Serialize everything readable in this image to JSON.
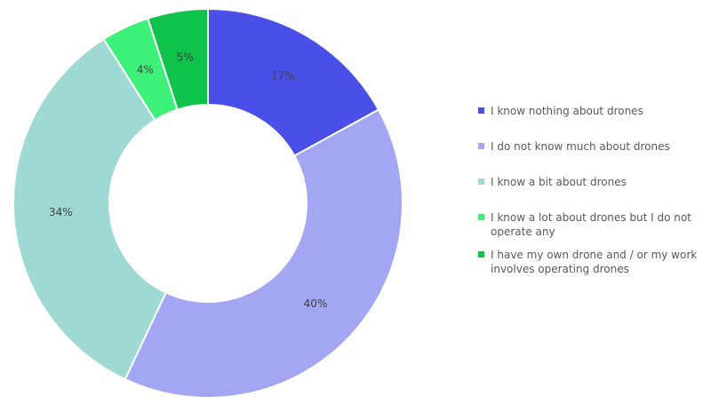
{
  "chart_data": {
    "type": "pie",
    "donut": true,
    "legend_position": "right",
    "slices": [
      {
        "label": "I know nothing about drones",
        "value": 17,
        "value_label": "17%",
        "color": "#4a4fe8"
      },
      {
        "label": "I do not know much about drones",
        "value": 40,
        "value_label": "40%",
        "color": "#a3a6f2"
      },
      {
        "label": "I know a bit about drones",
        "value": 34,
        "value_label": "34%",
        "color": "#9ed9d4"
      },
      {
        "label": "I know a lot about drones but I do not operate any",
        "value": 4,
        "value_label": "4%",
        "color": "#3cf07a"
      },
      {
        "label": "I have my own drone and / or my work involves operating drones",
        "value": 5,
        "value_label": "5%",
        "color": "#0fc24a"
      }
    ]
  }
}
